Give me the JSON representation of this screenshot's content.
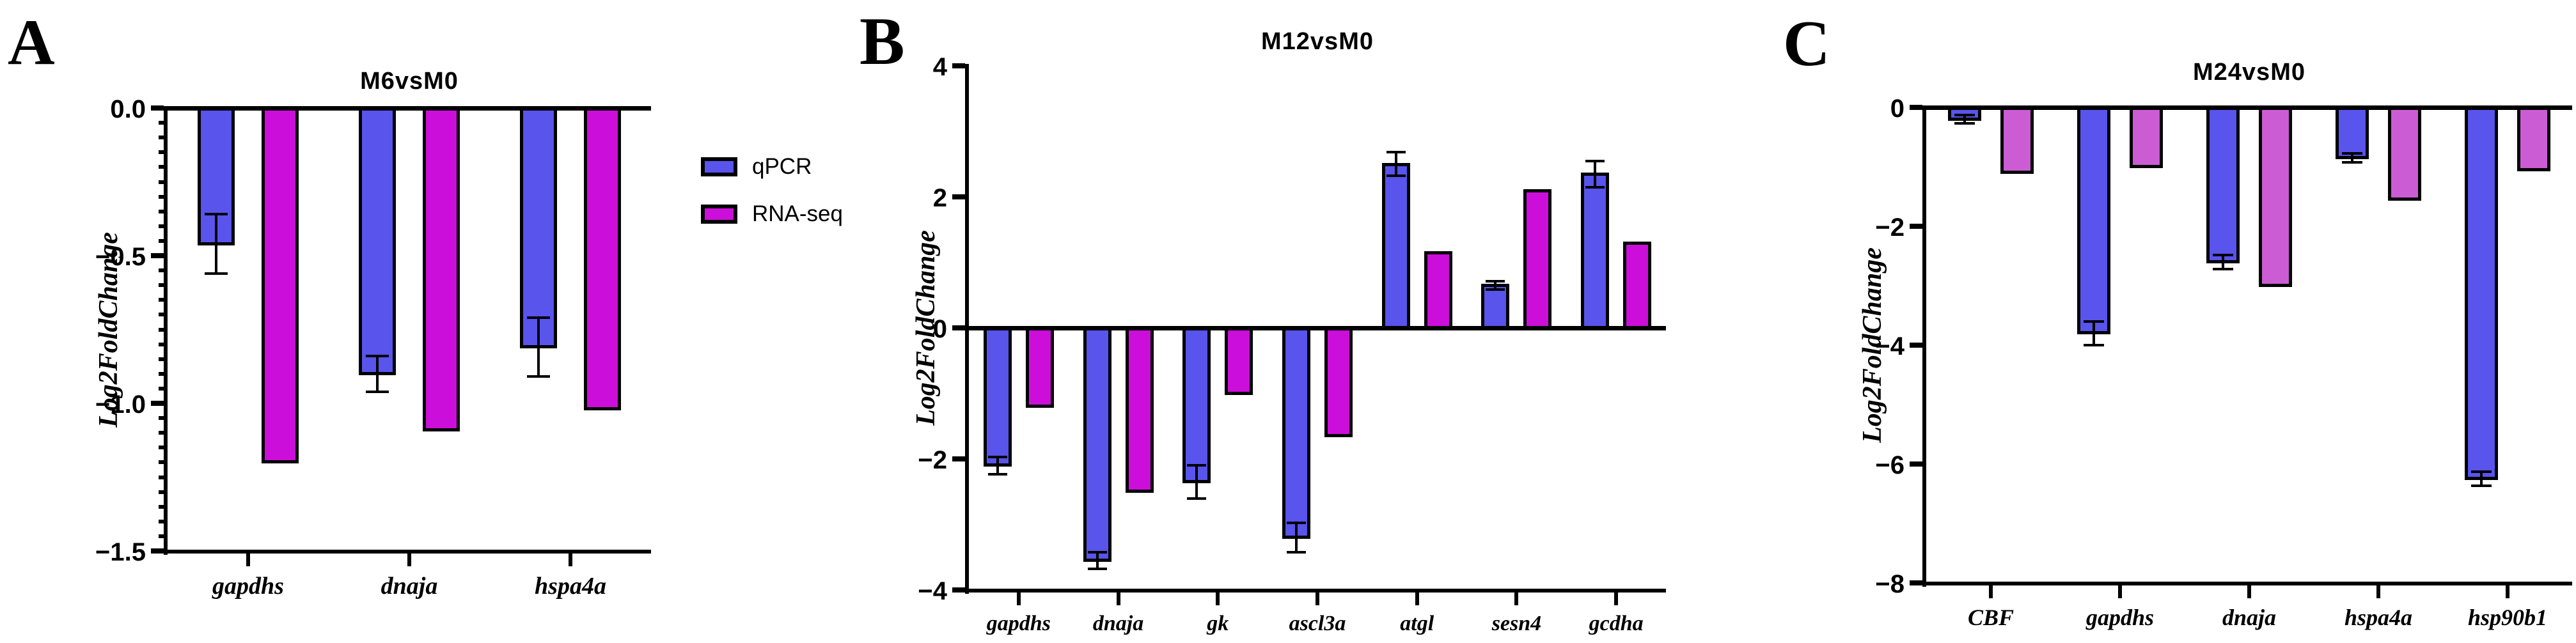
{
  "legend": {
    "items": [
      {
        "label": "qPCR",
        "color": "#5854EC"
      },
      {
        "label": "RNA-seq",
        "color": "#CC0EDA"
      }
    ]
  },
  "chart_data": [
    {
      "type": "bar",
      "panel_label": "A",
      "title": "M6vsM0",
      "ylabel": "Log2FoldChange",
      "xlabel": "",
      "ylim": [
        -1.5,
        0
      ],
      "yticks": [
        0,
        -0.5,
        -1.0,
        -1.5
      ],
      "ytick_labels": [
        "0.0",
        "−0.5",
        "−1.0",
        "−1.5"
      ],
      "minor_tick_step": 0.05,
      "grid": false,
      "legend_position": "right-of-plot",
      "categories": [
        "gapdhs",
        "dnaja",
        "hspa4a"
      ],
      "series": [
        {
          "name": "qPCR",
          "color": "#5854EC",
          "values": [
            -0.46,
            -0.9,
            -0.81
          ],
          "errors": [
            0.1,
            0.06,
            0.1
          ]
        },
        {
          "name": "RNA-seq",
          "color": "#CC0EDA",
          "values": [
            -1.2,
            -1.09,
            -1.02
          ],
          "errors": [
            0,
            0,
            0
          ]
        }
      ]
    },
    {
      "type": "bar",
      "panel_label": "B",
      "title": "M12vsM0",
      "ylabel": "Log2FoldChange",
      "xlabel": "",
      "ylim": [
        -4,
        4
      ],
      "yticks": [
        4,
        2,
        0,
        -2,
        -4
      ],
      "ytick_labels": [
        "4",
        "2",
        "0",
        "−2",
        "−4"
      ],
      "grid": false,
      "categories": [
        "gapdhs",
        "dnaja",
        "gk",
        "ascl3a",
        "atgl",
        "sesn4",
        "gcdha"
      ],
      "series": [
        {
          "name": "qPCR",
          "color": "#5854EC",
          "values": [
            -2.1,
            -3.55,
            -2.35,
            -3.2,
            2.5,
            0.65,
            2.35
          ],
          "errors": [
            0.13,
            0.13,
            0.25,
            0.22,
            0.18,
            0.06,
            0.2
          ]
        },
        {
          "name": "RNA-seq",
          "color": "#CC0EDA",
          "values": [
            -1.2,
            -2.5,
            -1.0,
            -1.65,
            1.15,
            2.1,
            1.3
          ],
          "errors": [
            0,
            0,
            0,
            0,
            0,
            0,
            0
          ]
        }
      ]
    },
    {
      "type": "bar",
      "panel_label": "C",
      "title": "M24vsM0",
      "ylabel": "Log2FoldChange",
      "xlabel": "",
      "ylim": [
        -8,
        0
      ],
      "yticks": [
        0,
        -2,
        -4,
        -6,
        -8
      ],
      "ytick_labels": [
        "0",
        "−2",
        "−4",
        "−6",
        "−8"
      ],
      "grid": false,
      "categories": [
        "CBF",
        "gapdhs",
        "dnaja",
        "hspa4a",
        "hsp90b1"
      ],
      "series": [
        {
          "name": "qPCR",
          "color": "#5854EC",
          "values": [
            -0.2,
            -3.8,
            -2.6,
            -0.85,
            -6.25
          ],
          "errors": [
            0.07,
            0.2,
            0.12,
            0.08,
            0.12
          ]
        },
        {
          "name": "RNA-seq",
          "color": "#CC5CD4",
          "values": [
            -1.1,
            -1.0,
            -3.0,
            -1.55,
            -1.05
          ],
          "errors": [
            0,
            0,
            0,
            0,
            0
          ]
        }
      ]
    }
  ]
}
